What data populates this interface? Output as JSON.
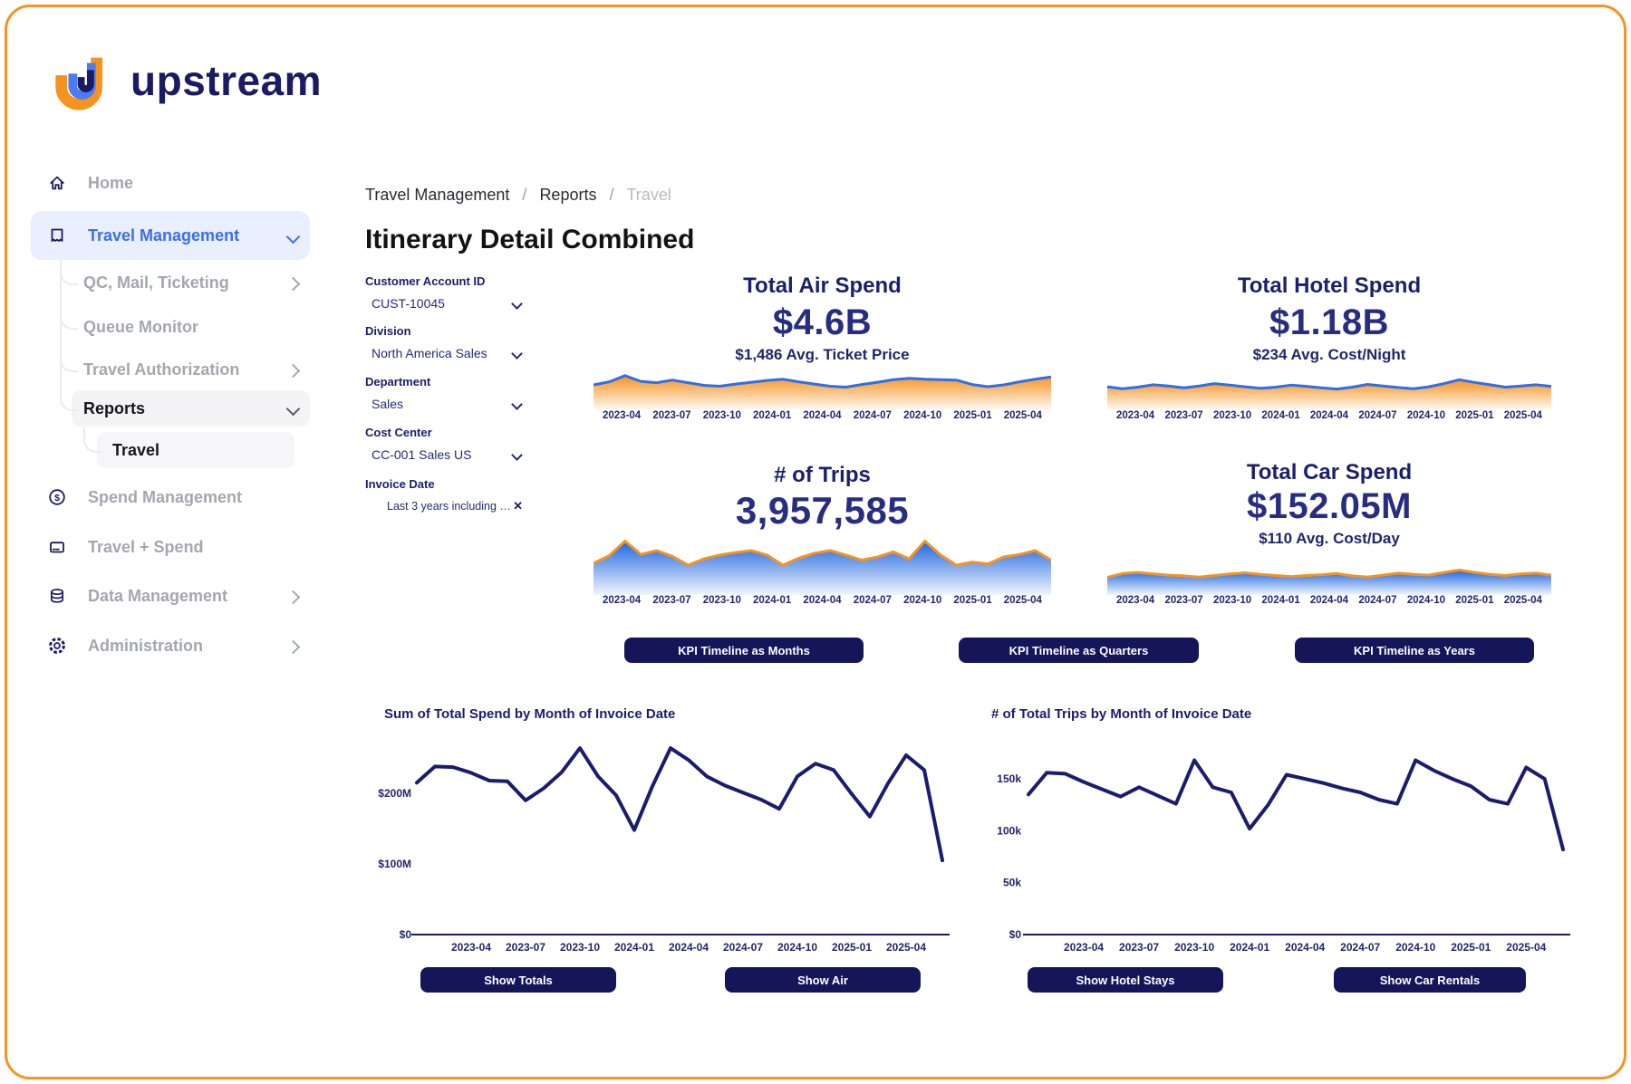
{
  "brand": {
    "name": "upstream"
  },
  "colors": {
    "navy_text": "#1b1b70",
    "navy_dark": "#15155a",
    "value_navy": "#272d80",
    "accent_blue": "#3b6ff0",
    "spark_blue": "#2e6fe8",
    "spark_blue_fill": "#1d66e0",
    "orange": "#f6921e",
    "border_orange": "#f79320",
    "gray_text": "#a3a7ae",
    "breadcrumb_muted": "#b7bac0",
    "sidebar_active_bg": "#e9effc",
    "sidebar_selected_bg": "#f4f4f6"
  },
  "sidebar": {
    "items": [
      {
        "label": "Home"
      },
      {
        "label": "Travel Management"
      },
      {
        "label": "QC, Mail, Ticketing"
      },
      {
        "label": "Queue Monitor"
      },
      {
        "label": "Travel Authorization"
      },
      {
        "label": "Reports"
      },
      {
        "label": "Travel"
      },
      {
        "label": "Spend Management"
      },
      {
        "label": "Travel + Spend"
      },
      {
        "label": "Data Management"
      },
      {
        "label": "Administration"
      }
    ]
  },
  "breadcrumb": {
    "items": [
      "Travel Management",
      "Reports",
      "Travel"
    ],
    "separator": "/"
  },
  "page": {
    "title": "Itinerary Detail Combined"
  },
  "filters": [
    {
      "label": "Customer Account ID",
      "value": "CUST-10045",
      "control": "select"
    },
    {
      "label": "Division",
      "value": "North America Sales",
      "control": "select"
    },
    {
      "label": "Department",
      "value": "Sales",
      "control": "select"
    },
    {
      "label": "Cost Center",
      "value": "CC-001 Sales US",
      "control": "select"
    },
    {
      "label": "Invoice Date",
      "value": "Last 3 years including thi...",
      "control": "clearable"
    }
  ],
  "kpis": [
    {
      "id": "air",
      "title": "Total Air Spend",
      "value": "$4.6B",
      "subtitle": "$1,486 Avg. Ticket Price"
    },
    {
      "id": "hotel",
      "title": "Total Hotel Spend",
      "value": "$1.18B",
      "subtitle": "$234 Avg. Cost/Night"
    },
    {
      "id": "trips",
      "title": "# of Trips",
      "value": "3,957,585",
      "subtitle": ""
    },
    {
      "id": "car",
      "title": "Total Car Spend",
      "value": "$152.05M",
      "subtitle": "$110 Avg. Cost/Day"
    }
  ],
  "kpi_timeline_buttons": [
    "KPI Timeline as Months",
    "KPI Timeline as Quarters",
    "KPI Timeline as Years"
  ],
  "show_buttons": [
    "Show Totals",
    "Show Air",
    "Show Hotel Stays",
    "Show Car Rentals"
  ],
  "timeline_ticks": [
    "2023-04",
    "2023-07",
    "2023-10",
    "2024-01",
    "2024-04",
    "2024-07",
    "2024-10",
    "2025-01",
    "2025-04"
  ],
  "chart_data": [
    {
      "id": "air-spend-sparkline",
      "type": "area",
      "stroke": "blue",
      "fill": "orange",
      "x_start": "2023-01",
      "x_end": "2025-06",
      "x_tick_labels": [
        "2023-04",
        "2023-07",
        "2023-10",
        "2024-01",
        "2024-04",
        "2024-07",
        "2024-10",
        "2025-01",
        "2025-04"
      ],
      "values": [
        55,
        62,
        76,
        63,
        60,
        66,
        60,
        54,
        52,
        57,
        61,
        65,
        68,
        62,
        57,
        52,
        50,
        56,
        61,
        67,
        70,
        68,
        67,
        66,
        56,
        51,
        55,
        62,
        68,
        73
      ],
      "value_scale": "relative-height-0-100"
    },
    {
      "id": "hotel-spend-sparkline",
      "type": "area",
      "stroke": "blue",
      "fill": "orange",
      "x_start": "2023-01",
      "x_end": "2025-06",
      "x_tick_labels": [
        "2023-04",
        "2023-07",
        "2023-10",
        "2024-01",
        "2024-04",
        "2024-07",
        "2024-10",
        "2025-01",
        "2025-04"
      ],
      "values": [
        58,
        53,
        57,
        63,
        60,
        55,
        60,
        66,
        62,
        58,
        54,
        57,
        62,
        59,
        55,
        52,
        57,
        64,
        60,
        56,
        53,
        58,
        66,
        76,
        69,
        63,
        57,
        60,
        63,
        59
      ],
      "value_scale": "relative-height-0-100"
    },
    {
      "id": "trips-sparkline",
      "type": "area",
      "stroke": "orange",
      "fill": "blue",
      "x_start": "2023-01",
      "x_end": "2025-06",
      "x_tick_labels": [
        "2023-04",
        "2023-07",
        "2023-10",
        "2024-01",
        "2024-04",
        "2024-07",
        "2024-10",
        "2025-01",
        "2025-04"
      ],
      "values": [
        50,
        62,
        85,
        64,
        70,
        61,
        47,
        57,
        63,
        67,
        70,
        63,
        47,
        58,
        66,
        70,
        63,
        55,
        60,
        68,
        57,
        85,
        63,
        47,
        52,
        49,
        60,
        64,
        70,
        55
      ],
      "value_scale": "relative-height-0-100"
    },
    {
      "id": "car-spend-sparkline",
      "type": "area",
      "stroke": "orange",
      "fill": "blue",
      "x_start": "2023-01",
      "x_end": "2025-06",
      "x_tick_labels": [
        "2023-04",
        "2023-07",
        "2023-10",
        "2024-01",
        "2024-04",
        "2024-07",
        "2024-10",
        "2025-01",
        "2025-04"
      ],
      "values": [
        45,
        55,
        58,
        54,
        51,
        49,
        46,
        50,
        54,
        57,
        53,
        50,
        47,
        50,
        52,
        55,
        49,
        46,
        51,
        56,
        53,
        51,
        58,
        64,
        58,
        53,
        50,
        54,
        56,
        51
      ],
      "value_scale": "relative-height-0-100"
    },
    {
      "id": "total-spend-by-month",
      "type": "line",
      "title": "Sum of Total Spend by Month of Invoice Date",
      "unit": "$M",
      "x_start": "2023-01",
      "x_end": "2025-06",
      "x_tick_labels": [
        "2023-04",
        "2023-07",
        "2023-10",
        "2024-01",
        "2024-04",
        "2024-07",
        "2024-10",
        "2025-01",
        "2025-04"
      ],
      "y_tick_labels": [
        "$0",
        "$100M",
        "$200M"
      ],
      "y_tick_values": [
        0,
        100,
        200
      ],
      "ylim": [
        0,
        274
      ],
      "values": [
        215,
        238,
        237,
        229,
        218,
        217,
        190,
        207,
        230,
        264,
        224,
        197,
        148,
        210,
        264,
        247,
        224,
        211,
        201,
        191,
        178,
        224,
        242,
        233,
        199,
        167,
        214,
        254,
        233,
        105
      ]
    },
    {
      "id": "total-trips-by-month",
      "type": "line",
      "title": "# of Total Trips by Month of Invoice Date",
      "unit": "thousand trips",
      "x_start": "2023-01",
      "x_end": "2025-06",
      "x_tick_labels": [
        "2023-04",
        "2023-07",
        "2023-10",
        "2024-01",
        "2024-04",
        "2024-07",
        "2024-10",
        "2025-01",
        "2025-04"
      ],
      "y_tick_labels": [
        "$0",
        "50k",
        "100k",
        "150k"
      ],
      "y_tick_values": [
        0,
        50,
        100,
        150
      ],
      "ylim": [
        0,
        187
      ],
      "values": [
        135,
        156,
        155,
        147,
        140,
        133,
        142,
        134,
        126,
        168,
        142,
        137,
        102,
        125,
        154,
        150,
        146,
        141,
        137,
        130,
        126,
        168,
        158,
        150,
        143,
        130,
        126,
        161,
        150,
        82
      ]
    }
  ]
}
